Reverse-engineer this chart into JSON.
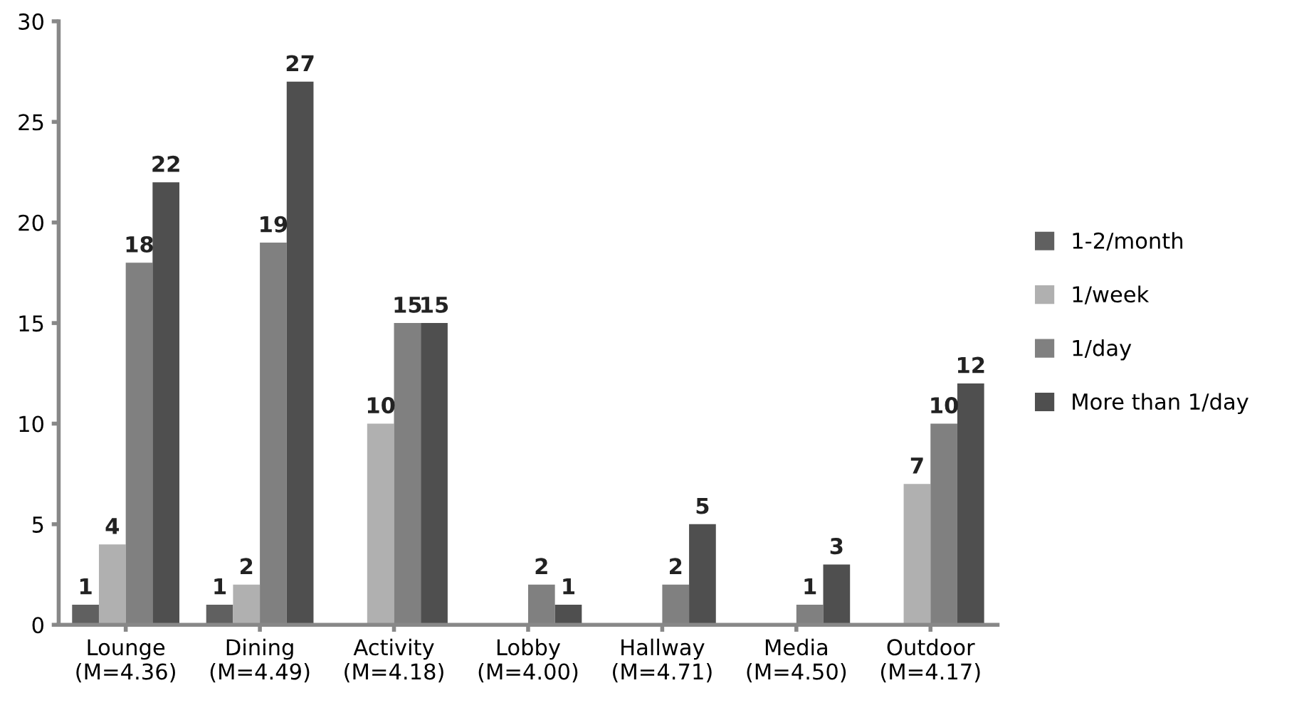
{
  "chart_data": {
    "type": "bar",
    "categories": [
      "Lounge\n(M=4.36)",
      "Dining\n(M=4.49)",
      "Activity\n(M=4.18)",
      "Lobby\n(M=4.00)",
      "Hallway\n(M=4.71)",
      "Media\n(M=4.50)",
      "Outdoor\n(M=4.17)"
    ],
    "series": [
      {
        "name": "1-2/month",
        "color": "#606060",
        "values": [
          1,
          1,
          null,
          null,
          null,
          null,
          null
        ]
      },
      {
        "name": "1/week",
        "color": "#b0b0b0",
        "values": [
          4,
          2,
          10,
          null,
          null,
          null,
          7
        ]
      },
      {
        "name": "1/day",
        "color": "#808080",
        "values": [
          18,
          19,
          15,
          2,
          2,
          1,
          10
        ]
      },
      {
        "name": "More than 1/day",
        "color": "#4f4f4f",
        "values": [
          22,
          27,
          15,
          1,
          5,
          3,
          12
        ]
      }
    ],
    "ylim": [
      0,
      30
    ],
    "yticks": [
      0,
      5,
      10,
      15,
      20,
      25,
      30
    ],
    "grid": false,
    "legend": "right",
    "data_labels": true
  }
}
